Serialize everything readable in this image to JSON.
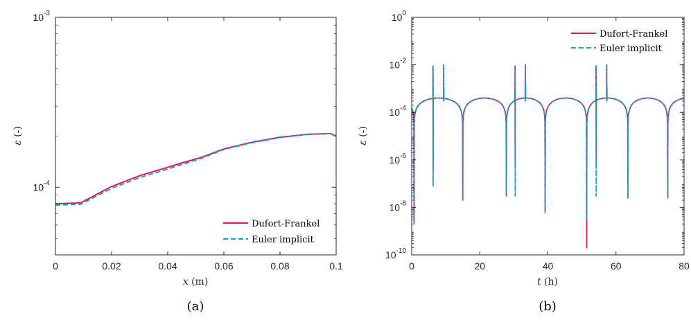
{
  "colors": {
    "df": "#e0194f",
    "ei": "#1b9bbf",
    "axis": "#262626"
  },
  "chart_data": [
    {
      "type": "line",
      "caption": "(a)",
      "xlabel_var": "x",
      "xlabel_unit": " (m)",
      "ylabel_var": "ε",
      "ylabel_unit": " (-)",
      "xlim": [
        0,
        0.1
      ],
      "ylim": [
        4e-05,
        0.001
      ],
      "yscale": "log",
      "xticks": [
        0,
        0.02,
        0.04,
        0.06,
        0.08,
        0.1
      ],
      "xtick_labels": [
        "0",
        "0.02",
        "0.04",
        "0.06",
        "0.08",
        "0.1"
      ],
      "yticks": [
        {
          "value": 0.0001,
          "base": "10",
          "exp": "-4"
        },
        {
          "value": 0.001,
          "base": "10",
          "exp": "-3"
        }
      ],
      "legend_position": "bottom-right",
      "series": [
        {
          "name": "Dufort-Frankel",
          "style": "solid",
          "x": [
            0,
            0.009,
            0.02,
            0.03,
            0.04,
            0.045,
            0.052,
            0.06,
            0.07,
            0.08,
            0.09,
            0.098,
            0.1
          ],
          "y": [
            8e-05,
            8.1e-05,
            0.000101,
            0.000117,
            0.000131,
            0.000139,
            0.00015,
            0.000168,
            0.000184,
            0.000197,
            0.000205,
            0.000207,
            0.0002
          ]
        },
        {
          "name": "Euler implicit",
          "style": "dashed",
          "x": [
            0,
            0.009,
            0.02,
            0.03,
            0.04,
            0.045,
            0.052,
            0.06,
            0.07,
            0.08,
            0.09,
            0.098,
            0.1
          ],
          "y": [
            7.85e-05,
            7.95e-05,
            9.85e-05,
            0.000114,
            0.000128,
            0.000136,
            0.000148,
            0.000167,
            0.000183,
            0.000196,
            0.000205,
            0.000207,
            0.0002
          ]
        }
      ]
    },
    {
      "type": "line",
      "caption": "(b)",
      "xlabel_var": "t",
      "xlabel_unit": " (h)",
      "ylabel_var": "ε",
      "ylabel_unit": " (-)",
      "xlim": [
        0,
        80
      ],
      "ylim": [
        1e-10,
        1
      ],
      "yscale": "log",
      "xticks": [
        0,
        20,
        40,
        60,
        80
      ],
      "xtick_labels": [
        "0",
        "20",
        "40",
        "60",
        "80"
      ],
      "yticks": [
        {
          "value": 1e-10,
          "base": "10",
          "exp": "-10"
        },
        {
          "value": 1e-08,
          "base": "10",
          "exp": "-8"
        },
        {
          "value": 1e-06,
          "base": "10",
          "exp": "-6"
        },
        {
          "value": 0.0001,
          "base": "10",
          "exp": "-4"
        },
        {
          "value": 0.01,
          "base": "10",
          "exp": "-2"
        },
        {
          "value": 1,
          "base": "10",
          "exp": "0"
        }
      ],
      "legend_position": "top-right",
      "arch_zeros": [
        0.7,
        15,
        27.8,
        39.2,
        51.4,
        63.5,
        75.2
      ],
      "arch_peak": 0.0004,
      "series": [
        {
          "name": "Dufort-Frankel",
          "style": "solid",
          "dips": [
            {
              "t": 0.7,
              "v": 2.5e-09
            },
            {
              "t": 15,
              "v": 2e-08
            },
            {
              "t": 27.8,
              "v": 3e-08
            },
            {
              "t": 39.2,
              "v": 6e-09
            },
            {
              "t": 51.4,
              "v": 2e-10
            },
            {
              "t": 63.5,
              "v": 2.5e-08
            },
            {
              "t": 75.2,
              "v": 2.5e-08
            }
          ],
          "spikes": [
            {
              "t": 6.3,
              "peak": 0.009,
              "low": 5e-07
            },
            {
              "t": 9.4,
              "peak": 0.01,
              "low": 0.0003
            },
            {
              "t": 30.4,
              "peak": 0.009,
              "low": 5e-07
            },
            {
              "t": 33.4,
              "peak": 0.01,
              "low": 0.0003
            },
            {
              "t": 54.2,
              "peak": 0.009,
              "low": 5e-07
            },
            {
              "t": 57.3,
              "peak": 0.01,
              "low": 0.0003
            }
          ]
        },
        {
          "name": "Euler implicit",
          "style": "dashed",
          "dips": [
            {
              "t": 0.7,
              "v": 2e-09
            },
            {
              "t": 15,
              "v": 2e-08
            },
            {
              "t": 27.8,
              "v": 3e-08
            },
            {
              "t": 39.2,
              "v": 6e-09
            },
            {
              "t": 51.4,
              "v": 3e-09
            },
            {
              "t": 63.5,
              "v": 2.5e-08
            },
            {
              "t": 75.2,
              "v": 2.5e-08
            }
          ],
          "spikes": [
            {
              "t": 6.3,
              "peak": 0.009,
              "low": 8e-08
            },
            {
              "t": 9.4,
              "peak": 0.01,
              "low": 0.0003
            },
            {
              "t": 30.4,
              "peak": 0.009,
              "low": 3e-08
            },
            {
              "t": 33.4,
              "peak": 0.01,
              "low": 0.0003
            },
            {
              "t": 54.2,
              "peak": 0.009,
              "low": 3e-08
            },
            {
              "t": 57.3,
              "peak": 0.01,
              "low": 0.0003
            }
          ]
        }
      ]
    }
  ]
}
